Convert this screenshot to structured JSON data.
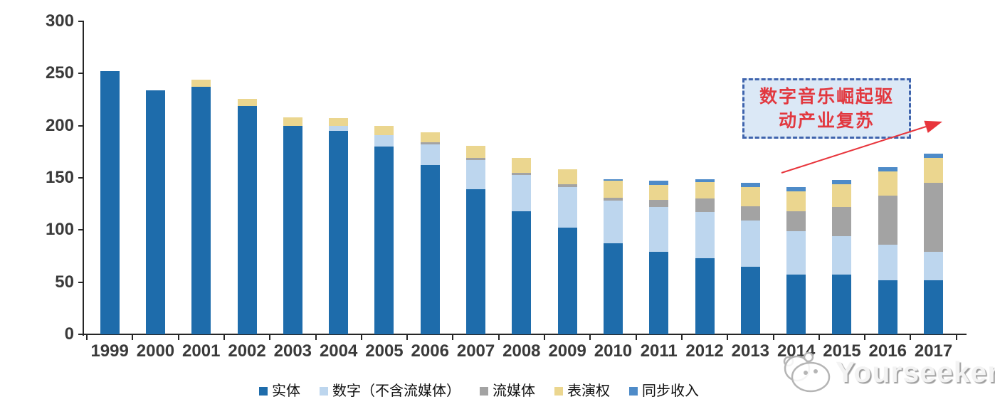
{
  "chart_data": {
    "type": "bar",
    "stacked": true,
    "title": "",
    "xlabel": "",
    "ylabel": "",
    "categories": [
      "1999",
      "2000",
      "2001",
      "2002",
      "2003",
      "2004",
      "2005",
      "2006",
      "2007",
      "2008",
      "2009",
      "2010",
      "2011",
      "2012",
      "2013",
      "2014",
      "2015",
      "2016",
      "2017"
    ],
    "series": [
      {
        "name": "实体",
        "color": "#1E6CAB",
        "values": [
          252,
          234,
          237,
          219,
          200,
          195,
          180,
          162,
          139,
          118,
          102,
          87,
          79,
          73,
          65,
          57,
          57,
          52,
          52
        ]
      },
      {
        "name": "数字（不含流媒体）",
        "color": "#BDD6EE",
        "values": [
          0,
          0,
          0,
          0,
          0,
          5,
          11,
          20,
          28,
          35,
          39,
          41,
          43,
          44,
          44,
          42,
          37,
          34,
          27
        ]
      },
      {
        "name": "流媒体",
        "color": "#A3A3A3",
        "values": [
          0,
          0,
          0,
          0,
          0,
          0,
          0,
          2,
          2,
          2,
          3,
          3,
          7,
          13,
          14,
          19,
          28,
          47,
          66
        ]
      },
      {
        "name": "表演权",
        "color": "#EBD68F",
        "values": [
          0,
          0,
          7,
          7,
          8,
          7,
          9,
          10,
          12,
          14,
          14,
          16,
          14,
          16,
          18,
          19,
          22,
          23,
          24
        ]
      },
      {
        "name": "同步收入",
        "color": "#4E8BC8",
        "values": [
          0,
          0,
          0,
          0,
          0,
          0,
          0,
          0,
          0,
          0,
          0,
          2,
          4,
          3,
          4,
          4,
          4,
          4,
          4
        ]
      }
    ],
    "ylim": [
      0,
      300
    ],
    "ytick_step": 50,
    "grid": false,
    "legend_position": "bottom"
  },
  "annotation": {
    "line1": "数字音乐崛起驱",
    "line2": "动产业复苏",
    "text_color": "#E2383F",
    "border_color": "#3F64AD",
    "fill_color": "#DBE8F6",
    "arrow_color": "#E8353C"
  },
  "axis": {
    "line_color": "#262626",
    "label_color": "#3A3A3A"
  },
  "watermark": {
    "text": "Yourseeker"
  }
}
